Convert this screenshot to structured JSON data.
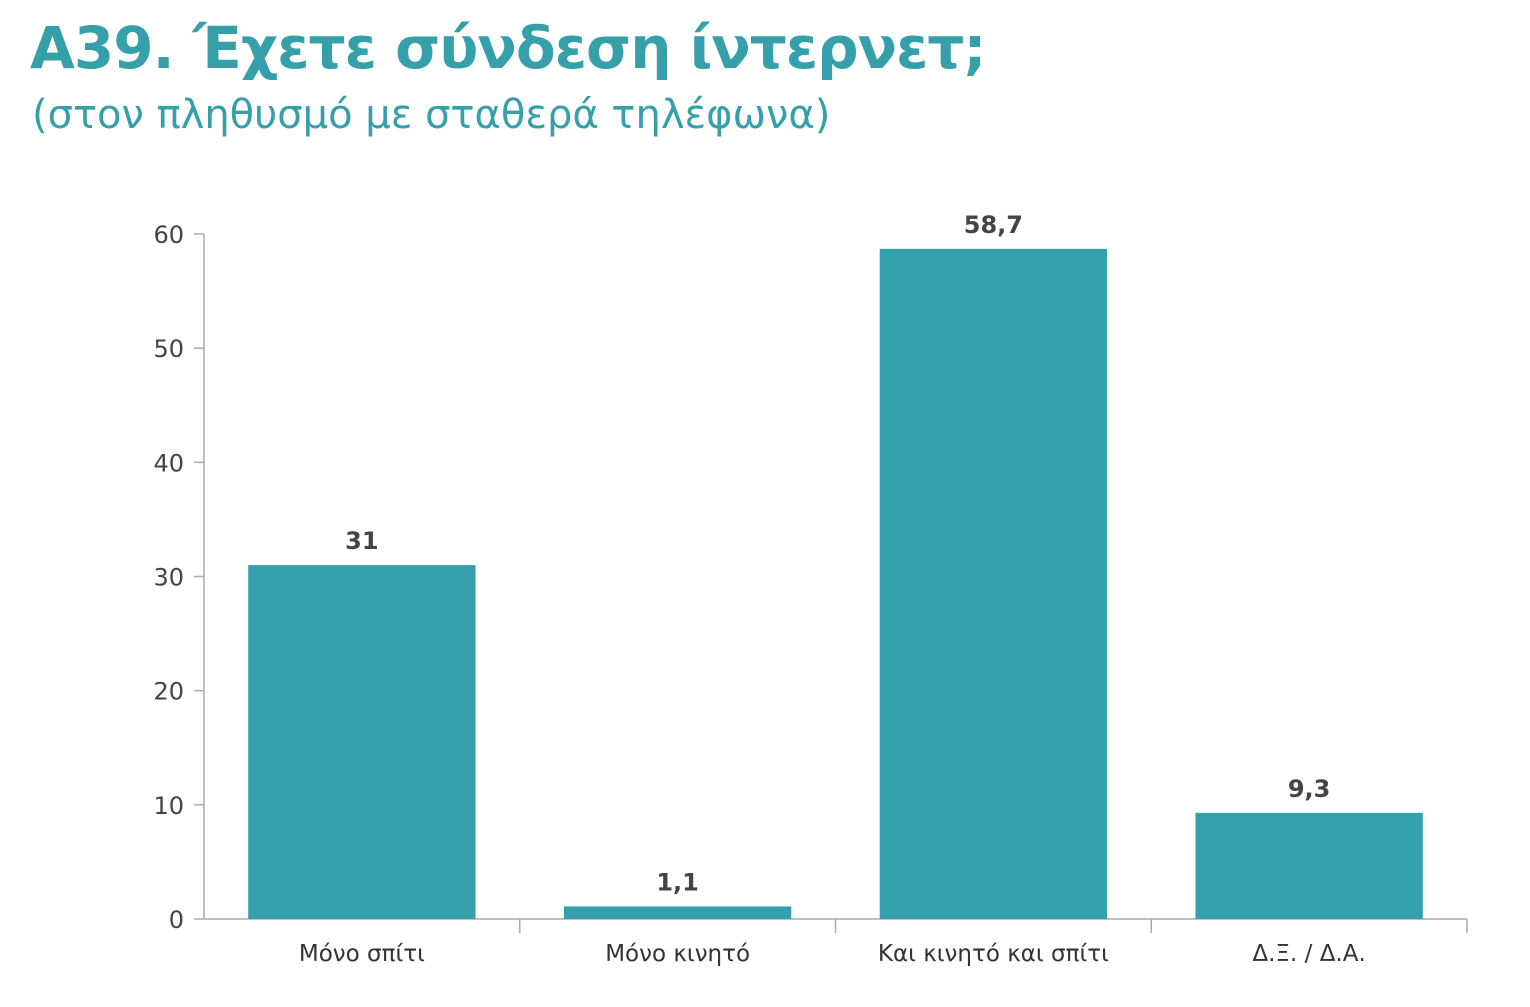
{
  "chart_data": {
    "type": "bar",
    "title": "A39. Έχετε σύνδεση ίντερνετ;",
    "subtitle": "(στον πληθυσμό με σταθερά τηλέφωνα)",
    "categories": [
      "Μόνο σπίτι",
      "Μόνο κινητό",
      "Και κινητό και σπίτι",
      "Δ.Ξ. / Δ.Α."
    ],
    "values": [
      31,
      1.1,
      58.7,
      9.3
    ],
    "value_labels": [
      "31",
      "1,1",
      "58,7",
      "9,3"
    ],
    "yticks": [
      "0",
      "10",
      "20",
      "30",
      "40",
      "50",
      "60"
    ],
    "ylim": [
      0,
      60
    ],
    "xlabel": "",
    "ylabel": "",
    "grid": false,
    "legend": "none",
    "colors": {
      "bar": "#35a0ad",
      "title": "#35a0aa",
      "axis": "#aaaaaa"
    }
  }
}
